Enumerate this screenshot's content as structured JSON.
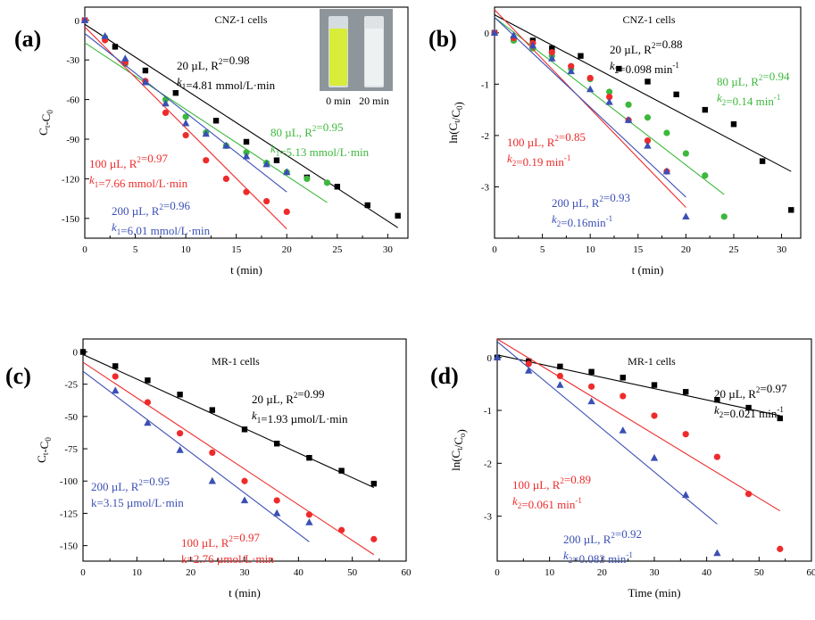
{
  "chart_data": [
    {
      "type": "scatter",
      "panel_label": "(a)",
      "title": "CNZ-1 cells",
      "xlabel": "t (min)",
      "ylabel": "Ct-C0",
      "xlim": [
        0,
        32
      ],
      "ylim": [
        -165,
        10
      ],
      "xticks": [
        0,
        5,
        10,
        15,
        20,
        25,
        30
      ],
      "yticks": [
        0,
        -30,
        -60,
        -90,
        -120,
        -150
      ],
      "inset": {
        "labels": [
          "0 min",
          "20 min"
        ]
      },
      "series": [
        {
          "name": "20 µL",
          "color": "#000000",
          "marker": "square",
          "x": [
            0,
            3,
            6,
            9,
            13,
            16,
            19,
            22,
            25,
            28,
            31
          ],
          "y": [
            0,
            -20,
            -38,
            -55,
            -76,
            -92,
            -106,
            -119,
            -126,
            -140,
            -148
          ],
          "fit": {
            "x": [
              0,
              31
            ],
            "y": [
              -3,
              -157
            ]
          },
          "annotation": [
            "20 µL, R²=0.98",
            "k1=4.81 mmol/L·min"
          ]
        },
        {
          "name": "80 µL",
          "color": "#3cb83c",
          "marker": "circle",
          "x": [
            2,
            4,
            8,
            10,
            12,
            14,
            16,
            18,
            20,
            22,
            24
          ],
          "y": [
            -13,
            -33,
            -60,
            -73,
            -85,
            -95,
            -100,
            -108,
            -115,
            -120,
            -123
          ],
          "fit": {
            "x": [
              0,
              24
            ],
            "y": [
              -17,
              -138
            ]
          },
          "annotation": [
            "80 µL, R²=0.95",
            "k1=5.13 mmol/L·min"
          ]
        },
        {
          "name": "100 µL",
          "color": "#ee2b2b",
          "marker": "circle",
          "x": [
            0,
            2,
            4,
            6,
            8,
            10,
            12,
            14,
            16,
            18,
            20
          ],
          "y": [
            0,
            -15,
            -32,
            -46,
            -70,
            -87,
            -106,
            -120,
            -130,
            -137,
            -145
          ],
          "fit": {
            "x": [
              0,
              20
            ],
            "y": [
              -5,
              -158
            ]
          },
          "annotation": [
            "100 µL, R²=0.97",
            "k1=7.66 mmol/L·min"
          ]
        },
        {
          "name": "200 µL",
          "color": "#3a4fb5",
          "marker": "triangle",
          "x": [
            0,
            2,
            4,
            6,
            8,
            10,
            12,
            14,
            16,
            18,
            20
          ],
          "y": [
            0,
            -12,
            -29,
            -47,
            -63,
            -78,
            -86,
            -95,
            -103,
            -109,
            -115
          ],
          "fit": {
            "x": [
              0,
              20
            ],
            "y": [
              -10,
              -130
            ]
          },
          "annotation": [
            "200 µL, R²=0.96",
            "k1=6.01 mmol/L·min"
          ]
        }
      ]
    },
    {
      "type": "scatter",
      "panel_label": "(b)",
      "title": "CNZ-1 cells",
      "xlabel": "t (min)",
      "ylabel": "ln(Ct/C0)",
      "xlim": [
        0,
        32
      ],
      "ylim": [
        -4.0,
        0.5
      ],
      "xticks": [
        0,
        5,
        10,
        15,
        20,
        25,
        30
      ],
      "yticks": [
        0,
        -1,
        -2,
        -3
      ],
      "series": [
        {
          "name": "20 µL",
          "color": "#000000",
          "marker": "square",
          "x": [
            0,
            2,
            4,
            6,
            9,
            13,
            16,
            19,
            22,
            25,
            28,
            31
          ],
          "y": [
            0,
            -0.13,
            -0.15,
            -0.3,
            -0.45,
            -0.7,
            -0.95,
            -1.2,
            -1.5,
            -1.78,
            -2.5,
            -3.45
          ],
          "fit": {
            "x": [
              0,
              31
            ],
            "y": [
              0.35,
              -2.7
            ]
          },
          "annotation": [
            "20 µL, R²=0.88",
            "k2=0.098 min⁻¹"
          ]
        },
        {
          "name": "80 µL",
          "color": "#3cb83c",
          "marker": "circle",
          "x": [
            2,
            4,
            6,
            8,
            10,
            12,
            14,
            16,
            18,
            20,
            22,
            24
          ],
          "y": [
            -0.15,
            -0.3,
            -0.45,
            -0.7,
            -0.9,
            -1.15,
            -1.4,
            -1.65,
            -1.95,
            -2.35,
            -2.78,
            -3.58
          ],
          "fit": {
            "x": [
              0,
              24
            ],
            "y": [
              0.3,
              -3.15
            ]
          },
          "annotation": [
            "80 µL, R²=0.94",
            "k2=0.14 min⁻¹"
          ]
        },
        {
          "name": "100 µL",
          "color": "#ee2b2b",
          "marker": "circle",
          "x": [
            0,
            2,
            4,
            6,
            8,
            10,
            12,
            14,
            16,
            18
          ],
          "y": [
            0,
            -0.1,
            -0.2,
            -0.38,
            -0.65,
            -0.88,
            -1.25,
            -1.7,
            -2.1,
            -2.7
          ],
          "fit": {
            "x": [
              0,
              20
            ],
            "y": [
              0.45,
              -3.4
            ]
          },
          "annotation": [
            "100 µL, R²=0.85",
            "k2=0.19 min⁻¹"
          ]
        },
        {
          "name": "200 µL",
          "color": "#3a4fb5",
          "marker": "triangle",
          "x": [
            0,
            2,
            4,
            6,
            8,
            10,
            12,
            14,
            16,
            18,
            20
          ],
          "y": [
            0,
            -0.05,
            -0.25,
            -0.5,
            -0.75,
            -1.1,
            -1.35,
            -1.7,
            -2.2,
            -2.7,
            -3.58
          ],
          "fit": {
            "x": [
              0,
              20
            ],
            "y": [
              0.3,
              -3.2
            ]
          },
          "annotation": [
            "200 µL, R²=0.93",
            "k2=0.16min⁻¹"
          ]
        }
      ]
    },
    {
      "type": "scatter",
      "panel_label": "(c)",
      "title": "MR-1 cells",
      "xlabel": "t (min)",
      "ylabel": "Ct-C0",
      "xlim": [
        0,
        60
      ],
      "ylim": [
        -162,
        10
      ],
      "xticks": [
        0,
        10,
        20,
        30,
        40,
        50,
        60
      ],
      "yticks": [
        0,
        -25,
        -50,
        -75,
        -100,
        -125,
        -150
      ],
      "series": [
        {
          "name": "20 µL",
          "color": "#000000",
          "marker": "square",
          "x": [
            0,
            6,
            12,
            18,
            24,
            30,
            36,
            42,
            48,
            54
          ],
          "y": [
            0,
            -11,
            -22,
            -33,
            -45,
            -60,
            -71,
            -82,
            -92,
            -102
          ],
          "fit": {
            "x": [
              0,
              54
            ],
            "y": [
              -2,
              -105
            ]
          },
          "annotation": [
            "20 µL, R²=0.99",
            "k1=1.93 µmol/L·min"
          ]
        },
        {
          "name": "200 µL",
          "color": "#3a4fb5",
          "marker": "triangle",
          "x": [
            6,
            12,
            18,
            24,
            30,
            36,
            42
          ],
          "y": [
            -30,
            -55,
            -76,
            -100,
            -115,
            -125,
            -132
          ],
          "fit": {
            "x": [
              0,
              42
            ],
            "y": [
              -15,
              -147
            ]
          },
          "annotation": [
            "200 µL, R²=0.95",
            "k=3.15 µmol/L·min"
          ]
        },
        {
          "name": "100 µL",
          "color": "#ee2b2b",
          "marker": "circle",
          "x": [
            6,
            12,
            18,
            24,
            30,
            36,
            42,
            48,
            54
          ],
          "y": [
            -19,
            -39,
            -63,
            -78,
            -100,
            -115,
            -126,
            -138,
            -145
          ],
          "fit": {
            "x": [
              0,
              54
            ],
            "y": [
              -8,
              -157
            ]
          },
          "annotation": [
            "100 µL, R²=0.97",
            "k=2.76 µmol/L·min"
          ]
        }
      ]
    },
    {
      "type": "scatter",
      "panel_label": "(d)",
      "title": "MR-1 cells",
      "xlabel": "Time (min)",
      "ylabel": "ln(Ct/Co)",
      "xlim": [
        0,
        60
      ],
      "ylim": [
        -3.85,
        0.35
      ],
      "xticks": [
        0,
        10,
        20,
        30,
        40,
        50,
        60
      ],
      "yticks": [
        0,
        -1,
        -2,
        -3
      ],
      "series": [
        {
          "name": "20 µL",
          "color": "#000000",
          "marker": "square",
          "x": [
            0,
            6,
            12,
            18,
            24,
            30,
            36,
            42,
            48,
            54
          ],
          "y": [
            0,
            -0.07,
            -0.17,
            -0.27,
            -0.38,
            -0.52,
            -0.65,
            -0.8,
            -0.95,
            -1.15
          ],
          "fit": {
            "x": [
              0,
              54
            ],
            "y": [
              0.05,
              -1.1
            ]
          },
          "annotation": [
            "20 µL, R²=0.97",
            "k2=0.021 min⁻¹"
          ]
        },
        {
          "name": "100 µL",
          "color": "#ee2b2b",
          "marker": "circle",
          "x": [
            6,
            12,
            18,
            24,
            30,
            36,
            42,
            48,
            54
          ],
          "y": [
            -0.12,
            -0.35,
            -0.55,
            -0.73,
            -1.1,
            -1.45,
            -1.88,
            -2.58,
            -3.62
          ],
          "fit": {
            "x": [
              0,
              54
            ],
            "y": [
              0.35,
              -2.9
            ]
          },
          "annotation": [
            "100  µL, R²=0.89",
            "k2=0.061 min⁻¹"
          ]
        },
        {
          "name": "200 µL",
          "color": "#3a4fb5",
          "marker": "triangle",
          "x": [
            0,
            6,
            12,
            18,
            24,
            30,
            36,
            42
          ],
          "y": [
            0,
            -0.25,
            -0.52,
            -0.83,
            -1.38,
            -1.9,
            -2.6,
            -3.7
          ],
          "fit": {
            "x": [
              0,
              42
            ],
            "y": [
              0.3,
              -3.15
            ]
          },
          "annotation": [
            "200  µL, R²=0.92",
            "k2=0.083 min⁻¹"
          ]
        }
      ]
    }
  ]
}
